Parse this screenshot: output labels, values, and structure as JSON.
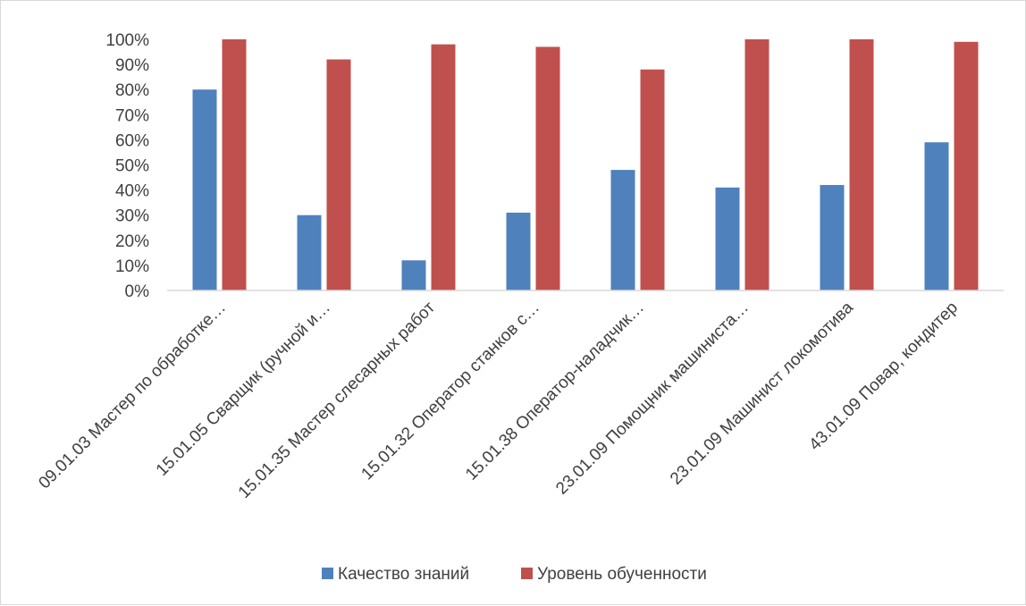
{
  "chart_data": {
    "type": "bar",
    "categories": [
      "09.01.03 Мастер по обработке…",
      "15.01.05 Сварщик (ручной и…",
      "15.01.35 Мастер слесарных работ",
      "15.01.32 Оператор станков с…",
      "15.01.38 Оператор-наладчик…",
      "23.01.09 Помощник машиниста…",
      "23.01.09 Машинист локомотива",
      "43.01.09 Повар, кондитер"
    ],
    "series": [
      {
        "name": "Качество знаний",
        "color": "#4f81bd",
        "values": [
          80,
          30,
          12,
          31,
          48,
          41,
          42,
          59
        ]
      },
      {
        "name": "Уровень обученности",
        "color": "#c0504d",
        "values": [
          100,
          92,
          98,
          97,
          88,
          100,
          100,
          99
        ]
      }
    ],
    "title": "",
    "xlabel": "",
    "ylabel": "",
    "ylim": [
      0,
      100
    ],
    "yticks": [
      "0%",
      "10%",
      "20%",
      "30%",
      "40%",
      "50%",
      "60%",
      "70%",
      "80%",
      "90%",
      "100%"
    ],
    "grid": false,
    "legend_position": "bottom"
  }
}
